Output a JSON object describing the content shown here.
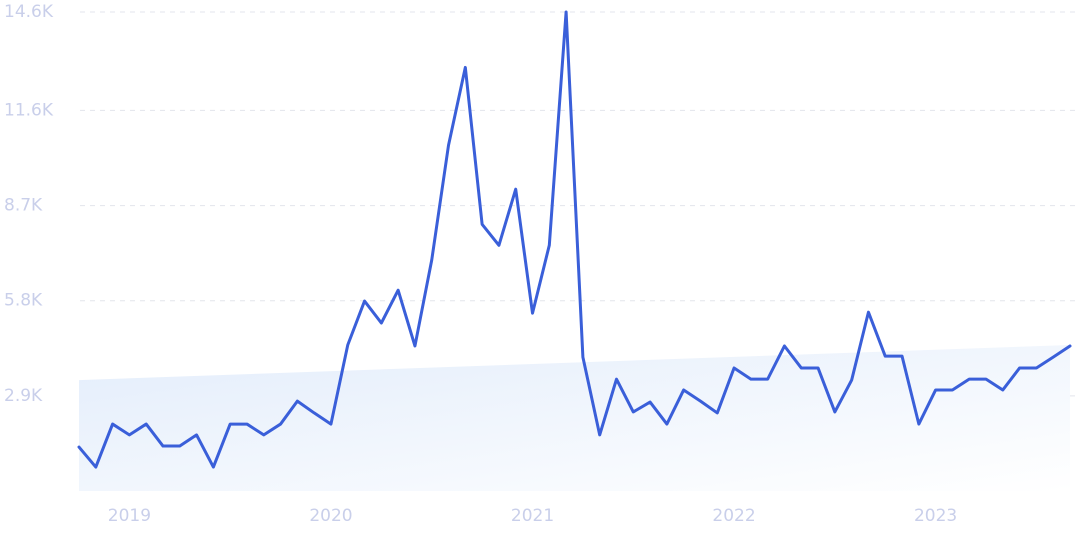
{
  "chart_data": {
    "type": "line",
    "categories": [
      null,
      null,
      null,
      "2019",
      null,
      null,
      null,
      null,
      null,
      null,
      null,
      null,
      null,
      null,
      null,
      "2020",
      null,
      null,
      null,
      null,
      null,
      null,
      null,
      null,
      null,
      null,
      null,
      "2021",
      null,
      null,
      null,
      null,
      null,
      null,
      null,
      null,
      null,
      null,
      null,
      "2022",
      null,
      null,
      null,
      null,
      null,
      null,
      null,
      null,
      null,
      null,
      null,
      "2023",
      null,
      null,
      null,
      null,
      null,
      null,
      null,
      null
    ],
    "series": [
      {
        "color": "#3a5fd9",
        "values": [
          1340,
          730,
          2040,
          1710,
          2040,
          1370,
          1370,
          1710,
          730,
          2040,
          2040,
          1710,
          2040,
          2740,
          2380,
          2040,
          4450,
          5790,
          5120,
          6120,
          4420,
          7040,
          10540,
          12910,
          8130,
          7490,
          9200,
          5420,
          7490,
          14600,
          4080,
          1710,
          3410,
          2410,
          2710,
          2040,
          3080,
          2740,
          2380,
          3750,
          3410,
          3410,
          4420,
          3750,
          3750,
          2410,
          3380,
          5450,
          4110,
          4110,
          2040,
          3080,
          3080,
          3410,
          3410,
          3080,
          3750,
          3750,
          4080,
          4420
        ]
      }
    ],
    "trend_values": [
      3380,
      4450
    ],
    "trend_color": "#e3edfb",
    "ylim": [
      0,
      14600
    ],
    "yticks": [
      {
        "value": 2900,
        "label": "2.9K"
      },
      {
        "value": 5800,
        "label": "5.8K"
      },
      {
        "value": 8700,
        "label": "8.7K"
      },
      {
        "value": 11600,
        "label": "11.6K"
      },
      {
        "value": 14600,
        "label": "14.6K"
      }
    ],
    "grid": true
  }
}
